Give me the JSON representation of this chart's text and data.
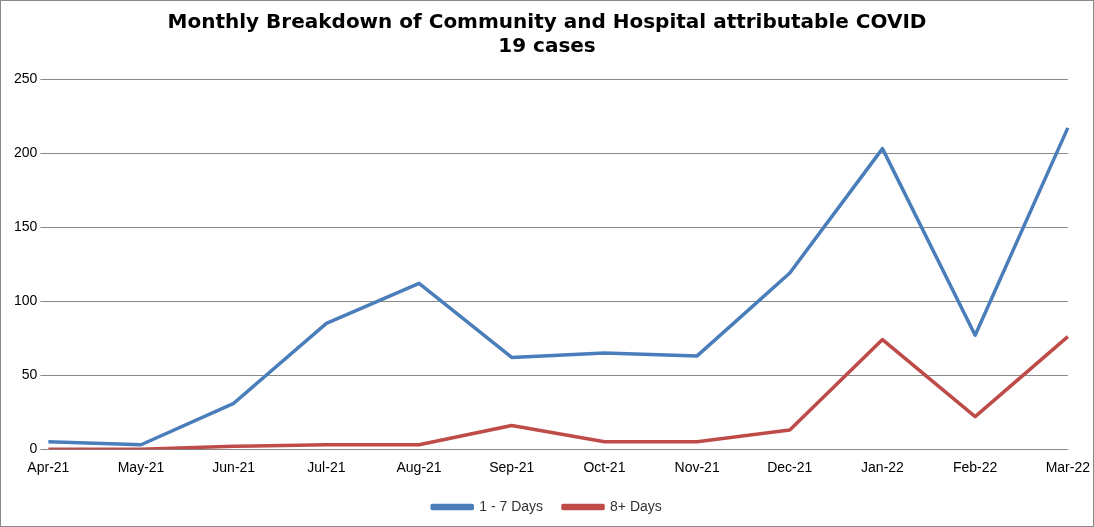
{
  "chart_data": {
    "type": "line",
    "title": [
      "Monthly Breakdown of Community and Hospital attributable COVID",
      "19 cases"
    ],
    "categories": [
      "Apr-21",
      "May-21",
      "Jun-21",
      "Jul-21",
      "Aug-21",
      "Sep-21",
      "Oct-21",
      "Nov-21",
      "Dec-21",
      "Jan-22",
      "Feb-22",
      "Mar-22"
    ],
    "series": [
      {
        "name": "1 - 7 Days",
        "color": "#4a7ebb",
        "values": [
          5,
          3,
          31,
          85,
          112,
          62,
          65,
          63,
          119,
          203,
          77,
          217
        ]
      },
      {
        "name": "8+ Days",
        "color": "#be4b48",
        "values": [
          0,
          0,
          2,
          3,
          3,
          16,
          5,
          5,
          13,
          74,
          22,
          76
        ]
      }
    ],
    "ylim": [
      0,
      250
    ],
    "yticks": [
      0,
      50,
      100,
      150,
      200,
      250
    ],
    "grid": "y",
    "legend": "bottom",
    "marker": "none",
    "line_style": "solid"
  }
}
